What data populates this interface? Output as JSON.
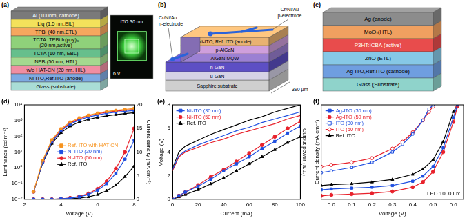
{
  "diagrams": [
    {
      "label": "(a)",
      "layers": [
        {
          "text": "Al (100nm, cathode)",
          "color": "#7a7a7a"
        },
        {
          "text": "Liq (1.5 nm,EIL)",
          "color": "#f3e15b"
        },
        {
          "text": "TPBi (40 nm,ETL)",
          "color": "#f6a75e"
        },
        {
          "text": [
            "TCTA: TPBi:Ir(ppy)₃",
            "(20 nm,active)"
          ],
          "color": "#8fd17a"
        },
        {
          "text": "TCTA (10 nm, EBL)",
          "color": "#66bf8c"
        },
        {
          "text": "NPB (50 nm, HTL)",
          "color": "#a4d98f"
        },
        {
          "text": "w/o HAT-CN (20 nm, HIL)",
          "color": "#f08ea2"
        },
        {
          "text": "Ni-ITO,Ref.ITO (anode)",
          "color": "#7eaae2"
        },
        {
          "text": "Glass (substrate)",
          "color": "#a9ddd6"
        }
      ],
      "inset": {
        "texts": [
          "ITO 30 nm",
          "6 V"
        ]
      }
    },
    {
      "label": "(b)",
      "layers": [
        {
          "text": "Ni-ITO, Ref. ITO (anode)",
          "color": "#e9b272"
        },
        {
          "text": "p-AlGaN",
          "color": "#cf9fdc"
        },
        {
          "text": "AlGaN-MQW",
          "color": "#9b80d3"
        },
        {
          "text": "n-GaN",
          "color": "#5d4fc4"
        },
        {
          "text": "u-GaN",
          "color": "#d5d2e6"
        },
        {
          "text": "Sapphire substrate",
          "color": "#cfcfcf"
        }
      ],
      "p_electrode": {
        "text": [
          "Cr/Ni/Au",
          "p-electrode"
        ],
        "color": "#2b63d9"
      },
      "n_electrode": {
        "text": [
          "Cr/Ni/Au",
          "n-electrode"
        ],
        "color": "#2b63d9"
      },
      "width_label": "390 μm"
    },
    {
      "label": "(c)",
      "layers": [
        {
          "text": "Ag (anode)",
          "color": "#8c8c8c"
        },
        {
          "text": "MoOₓ(HTL)",
          "color": "#f0a060"
        },
        {
          "text": "P3HT:ICBA (active)",
          "color": "#e84c4c"
        },
        {
          "text": "ZnO (ETL)",
          "color": "#86c8e6"
        },
        {
          "text": "Ag-ITO,Ref.ITO (cathode)",
          "color": "#6f9ee0"
        },
        {
          "text": "Glass (Substrate)",
          "color": "#8fd3cb"
        }
      ]
    }
  ],
  "chart_data": [
    {
      "type": "line",
      "label": "(d)",
      "x_label": "Voltage (V)",
      "y_label": "Luminance (cd m⁻²)",
      "y2_label": "Current density (mA cm⁻²)",
      "log": "y",
      "grid": false,
      "legend": "center",
      "xlim": [
        2,
        8
      ],
      "xticks": [
        2,
        4,
        6,
        8
      ],
      "ylim": [
        0.01,
        10000
      ],
      "yticks": [
        {
          "value": 0.01,
          "label": "10⁻²"
        },
        {
          "value": 0.1,
          "label": "10⁻¹"
        },
        {
          "value": 1,
          "label": "10⁰"
        },
        {
          "value": 10,
          "label": "10¹"
        },
        {
          "value": 100,
          "label": "10²"
        },
        {
          "value": 1000,
          "label": "10³"
        },
        {
          "value": 10000,
          "label": "10⁴"
        }
      ],
      "y2lim": [
        0,
        20
      ],
      "y2ticks": [
        0,
        5,
        10,
        15,
        20
      ],
      "x": [
        2.5,
        3,
        3.5,
        4,
        4.5,
        5,
        5.5,
        6,
        6.5,
        7,
        7.5,
        8
      ],
      "series": [
        {
          "name": "Ref. ITO with HAT-CN",
          "color": "#f7931e",
          "marker": "square",
          "values": [
            0.03,
            3,
            60,
            300,
            800,
            1500,
            2200,
            3000,
            3800,
            4500,
            5200,
            6000
          ]
        },
        {
          "name": "Ni-ITO (30 nm)",
          "color": "#1f4fe0",
          "marker": "square",
          "values": [
            0.03,
            2.2,
            45,
            220,
            600,
            1100,
            1700,
            2300,
            2900,
            3400,
            3900,
            4400
          ]
        },
        {
          "name": "Ni-ITO (50 nm)",
          "color": "#e8212b",
          "marker": "circle",
          "values": [
            0.03,
            2.5,
            50,
            250,
            700,
            1300,
            2000,
            2700,
            3400,
            4000,
            4600,
            5200
          ]
        },
        {
          "name": "Ref. ITO",
          "color": "#000000",
          "marker": "triangle",
          "values": [
            0.03,
            2,
            35,
            170,
            450,
            800,
            1200,
            1600,
            2000,
            2400,
            2800,
            3200
          ]
        },
        {
          "name": "Ni-ITO (30 nm)",
          "color": "#1f4fe0",
          "marker": "square",
          "axis": "y2",
          "values": [
            0,
            0,
            0,
            0.1,
            0.25,
            0.5,
            1,
            1.9,
            3.3,
            5.5,
            8.5,
            12.5
          ]
        },
        {
          "name": "Ni-ITO (50 nm)",
          "color": "#e8212b",
          "marker": "circle",
          "axis": "y2",
          "values": [
            0,
            0,
            0,
            0.1,
            0.3,
            0.6,
            1.2,
            2.2,
            3.8,
            6.5,
            10,
            15
          ]
        },
        {
          "name": "Ref. ITO",
          "color": "#000000",
          "marker": "triangle",
          "axis": "y2",
          "values": [
            0,
            0,
            0,
            0.05,
            0.1,
            0.25,
            0.5,
            1,
            1.8,
            3,
            4.8,
            7
          ]
        }
      ]
    },
    {
      "type": "line",
      "label": "(e)",
      "x_label": "Current (mA)",
      "y_label": "Voltage (V)",
      "y2_label": "Output power (a.u.)",
      "grid": false,
      "legend": "upper left",
      "xlim": [
        0,
        100
      ],
      "xticks": [
        0,
        20,
        40,
        60,
        80,
        100
      ],
      "ylim": [
        0,
        8
      ],
      "yticks": [
        0,
        2,
        4,
        6,
        8
      ],
      "y2lim": [
        0,
        8
      ],
      "x": [
        0,
        5,
        10,
        20,
        30,
        40,
        50,
        60,
        70,
        80,
        90,
        100
      ],
      "series": [
        {
          "name": "Ni-ITO (30 nm)",
          "color": "#1f4fe0",
          "marker": "none",
          "values": [
            2.5,
            3.7,
            4.1,
            4.6,
            5.0,
            5.4,
            5.8,
            6.1,
            6.5,
            6.8,
            7.1,
            7.4
          ]
        },
        {
          "name": "Ni-ITO (50 nm)",
          "color": "#e8212b",
          "marker": "none",
          "values": [
            2.4,
            3.6,
            4.0,
            4.4,
            4.8,
            5.1,
            5.5,
            5.8,
            6.1,
            6.4,
            6.8,
            7.1
          ]
        },
        {
          "name": "Ref. ITO",
          "color": "#000000",
          "marker": "none",
          "values": [
            2.6,
            4.0,
            4.5,
            5.0,
            5.5,
            5.9,
            6.3,
            6.7,
            7.0,
            7.4,
            7.7,
            8.0
          ]
        },
        {
          "name": "Ni-ITO (30 nm)",
          "color": "#1f4fe0",
          "marker": "square",
          "axis": "y2",
          "values": [
            0,
            0.3,
            0.6,
            1.1,
            1.7,
            2.4,
            3.0,
            3.6,
            4.3,
            4.9,
            5.6,
            6.2
          ]
        },
        {
          "name": "Ni-ITO (50 nm)",
          "color": "#e8212b",
          "marker": "circle",
          "axis": "y2",
          "values": [
            0,
            0.3,
            0.6,
            1.2,
            1.9,
            2.5,
            3.2,
            3.9,
            4.6,
            5.3,
            6.0,
            6.6
          ]
        },
        {
          "name": "Ref. ITO",
          "color": "#000000",
          "marker": "triangle",
          "axis": "y2",
          "values": [
            0,
            0.2,
            0.4,
            0.8,
            1.3,
            1.8,
            2.4,
            3.0,
            3.6,
            4.2,
            4.8,
            5.3
          ]
        }
      ]
    },
    {
      "type": "line",
      "label": "(f)",
      "x_label": "Voltage (V)",
      "y_label": "Current density (mA cm⁻²)",
      "grid": false,
      "legend": "upper left",
      "tick_labels": "x",
      "annotation": "LED 1000 lux",
      "xlim": [
        -0.05,
        0.65
      ],
      "xticks": [
        {
          "value": 0,
          "label": "0.0"
        },
        0.1,
        0.2,
        0.3,
        0.4,
        0.5,
        0.6
      ],
      "ylim": [
        -100,
        10
      ],
      "series": [
        {
          "name": "Ag-ITO (30 nm)",
          "color": "#1f4fe0",
          "marker": "square",
          "x": [
            -0.05,
            0,
            0.1,
            0.2,
            0.3,
            0.4,
            0.45,
            0.5,
            0.55,
            0.6,
            0.62
          ],
          "values": [
            -89,
            -88,
            -87,
            -86,
            -84,
            -79,
            -73,
            -62,
            -40,
            -5,
            10
          ]
        },
        {
          "name": "Ag-ITO (50 nm)",
          "color": "#e8212b",
          "marker": "circle",
          "x": [
            -0.05,
            0,
            0.1,
            0.2,
            0.3,
            0.4,
            0.45,
            0.5,
            0.55,
            0.6,
            0.62
          ],
          "values": [
            -96,
            -95,
            -94,
            -93,
            -91,
            -86,
            -80,
            -68,
            -45,
            -10,
            8
          ]
        },
        {
          "name": "ITO (30 nm)",
          "color": "#1f4fe0",
          "marker": "square-open",
          "x": [
            -0.05,
            0,
            0.1,
            0.2,
            0.3,
            0.35,
            0.4,
            0.45,
            0.48,
            0.5
          ],
          "values": [
            -69,
            -67,
            -63,
            -57,
            -45,
            -36,
            -24,
            -8,
            5,
            10
          ]
        },
        {
          "name": "ITO (50 nm)",
          "color": "#e8212b",
          "marker": "circle-open",
          "x": [
            -0.05,
            0,
            0.1,
            0.2,
            0.3,
            0.35,
            0.4,
            0.45,
            0.48,
            0.5
          ],
          "values": [
            -62,
            -60,
            -57,
            -52,
            -41,
            -33,
            -22,
            -8,
            2,
            8
          ]
        },
        {
          "name": "Ref. ITO",
          "color": "#000000",
          "marker": "triangle",
          "x": [
            -0.05,
            0,
            0.1,
            0.2,
            0.3,
            0.4,
            0.45,
            0.5,
            0.55,
            0.6,
            0.62
          ],
          "values": [
            -84,
            -83,
            -82,
            -80,
            -77,
            -71,
            -65,
            -54,
            -33,
            2,
            10
          ]
        }
      ]
    }
  ]
}
